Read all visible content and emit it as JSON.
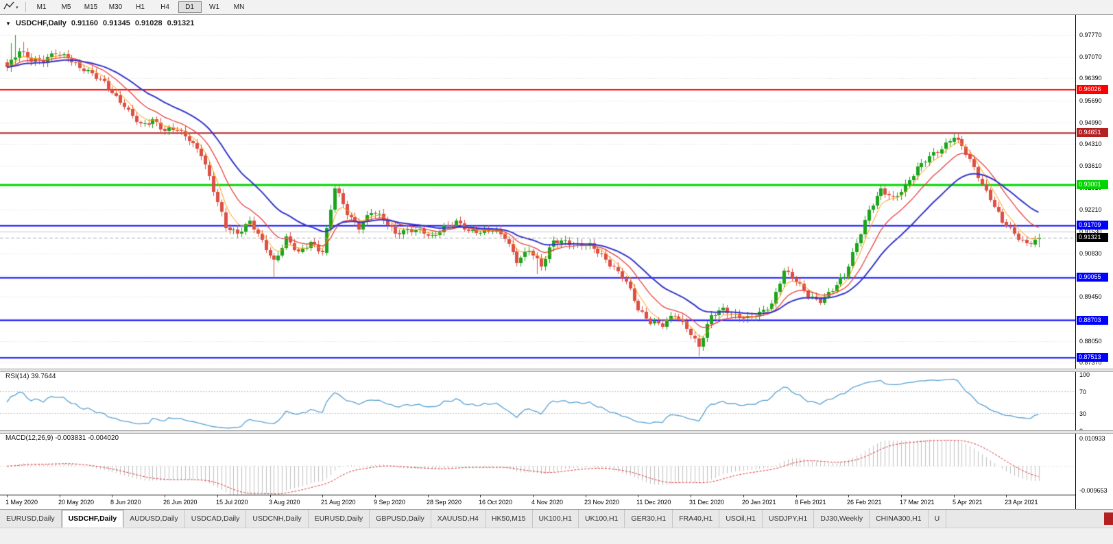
{
  "toolbar": {
    "timeframes": [
      "M1",
      "M5",
      "M15",
      "M30",
      "H1",
      "H4",
      "D1",
      "W1",
      "MN"
    ],
    "active_timeframe": "D1"
  },
  "chart": {
    "title": {
      "collapse_icon": "▼",
      "symbol": "USDCHF,Daily",
      "open": "0.91160",
      "high": "0.91345",
      "low": "0.91028",
      "close": "0.91321"
    },
    "price_scale": {
      "max": 0.984,
      "min": 0.8717
    },
    "price_axis_ticks": [
      "0.97770",
      "0.97070",
      "0.96390",
      "0.95690",
      "0.94990",
      "0.94310",
      "0.93610",
      "0.92910",
      "0.92210",
      "0.91530",
      "0.90830",
      "0.90130",
      "0.89450",
      "0.88750",
      "0.88050",
      "0.87370"
    ],
    "levels": [
      {
        "price": 0.96026,
        "label": "0.96026",
        "color": "#FF0000",
        "width": 2
      },
      {
        "price": 0.94651,
        "label": "0.94651",
        "color": "#B22222",
        "width": 2
      },
      {
        "price": 0.93001,
        "label": "0.93001",
        "color": "#00D500",
        "width": 3
      },
      {
        "price": 0.91709,
        "label": "0.91709",
        "color": "#0000FF",
        "width": 2
      },
      {
        "price": 0.90055,
        "label": "0.90055",
        "color": "#0000FF",
        "width": 2
      },
      {
        "price": 0.88703,
        "label": "0.88703",
        "color": "#0000FF",
        "width": 2
      },
      {
        "price": 0.87513,
        "label": "0.87513",
        "color": "#0000FF",
        "width": 2
      }
    ],
    "bid": {
      "value": 0.91321,
      "label": "0.91321"
    },
    "silver_line": {
      "price": 0.9153,
      "color": "#C8C8C8"
    },
    "dates": [
      "1 May 2020",
      "20 May 2020",
      "8 Jun 2020",
      "26 Jun 2020",
      "15 Jul 2020",
      "3 Aug 2020",
      "21 Aug 2020",
      "9 Sep 2020",
      "28 Sep 2020",
      "16 Oct 2020",
      "4 Nov 2020",
      "23 Nov 2020",
      "11 Dec 2020",
      "31 Dec 2020",
      "20 Jan 2021",
      "8 Feb 2021",
      "26 Feb 2021",
      "17 Mar 2021",
      "5 Apr 2021",
      "23 Apr 2021"
    ],
    "chart_data": {
      "type": "candlestick",
      "bar_count": 256,
      "waypoint_step": 3,
      "closes": [
        0.967,
        0.973,
        0.97,
        0.969,
        0.972,
        0.971,
        0.967,
        0.965,
        0.963,
        0.958,
        0.953,
        0.949,
        0.951,
        0.947,
        0.9475,
        0.945,
        0.94,
        0.928,
        0.917,
        0.915,
        0.918,
        0.912,
        0.906,
        0.913,
        0.908,
        0.912,
        0.909,
        0.929,
        0.921,
        0.917,
        0.9215,
        0.919,
        0.915,
        0.916,
        0.915,
        0.9135,
        0.917,
        0.918,
        0.915,
        0.9155,
        0.916,
        0.913,
        0.906,
        0.91,
        0.904,
        0.912,
        0.9125,
        0.911,
        0.9105,
        0.908,
        0.904,
        0.899,
        0.8905,
        0.887,
        0.8855,
        0.8885,
        0.885,
        0.879,
        0.888,
        0.8905,
        0.889,
        0.8875,
        0.889,
        0.8925,
        0.903,
        0.899,
        0.895,
        0.8935,
        0.8965,
        0.901,
        0.912,
        0.922,
        0.928,
        0.926,
        0.93,
        0.935,
        0.939,
        0.942,
        0.9455,
        0.94,
        0.933,
        0.926,
        0.918,
        0.9145,
        0.9116,
        0.91321
      ],
      "wick_overrides": [
        {
          "i": 1,
          "high": 0.975
        },
        {
          "i": 2,
          "high": 0.9777
        },
        {
          "i": 4,
          "high": 0.9756
        },
        {
          "i": 66,
          "low": 0.9005
        },
        {
          "i": 131,
          "low": 0.9018
        },
        {
          "i": 171,
          "low": 0.8757
        },
        {
          "i": 234,
          "high": 0.94651
        },
        {
          "i": 255,
          "high": 0.91345,
          "low": 0.91028
        }
      ],
      "up_color": "#1CA41C",
      "down_color": "#DC4F45"
    },
    "moving_averages": [
      {
        "name": "fast-ma",
        "period": 5,
        "color": "#FF9900",
        "width": 1
      },
      {
        "name": "medium-ma",
        "period": 12,
        "color": "#E84040",
        "width": 1.3
      },
      {
        "name": "slow-ma",
        "period": 25,
        "color": "#3333CC",
        "width": 2
      }
    ]
  },
  "rsi": {
    "label": "RSI(14) 39.7644",
    "value": "39.7644",
    "period": 14,
    "axis_ticks": [
      "100",
      "70",
      "30",
      "0"
    ],
    "guide_levels": [
      70,
      30
    ],
    "line_color": "#57A0D3"
  },
  "macd": {
    "label": "MACD(12,26,9) -0.003831 -0.004020",
    "main_value": "-0.003831",
    "signal_value": "-0.004020",
    "fast": 12,
    "slow": 26,
    "signal_period": 9,
    "axis_max": "0.010933",
    "axis_min": "-0.009653",
    "histogram_color": "#BFBFBF",
    "signal_color": "#DD3333"
  },
  "tabs": {
    "items": [
      "EURUSD,Daily",
      "USDCHF,Daily",
      "AUDUSD,Daily",
      "USDCAD,Daily",
      "USDCNH,Daily",
      "EURUSD,Daily",
      "GBPUSD,Daily",
      "XAUUSD,H4",
      "HK50,M15",
      "UK100,H1",
      "UK100,H1",
      "GER30,H1",
      "FRA40,H1",
      "USOil,H1",
      "USDJPY,H1",
      "DJ30,Weekly",
      "CHINA300,H1"
    ],
    "active_index": 1,
    "partial_tab": "U"
  }
}
